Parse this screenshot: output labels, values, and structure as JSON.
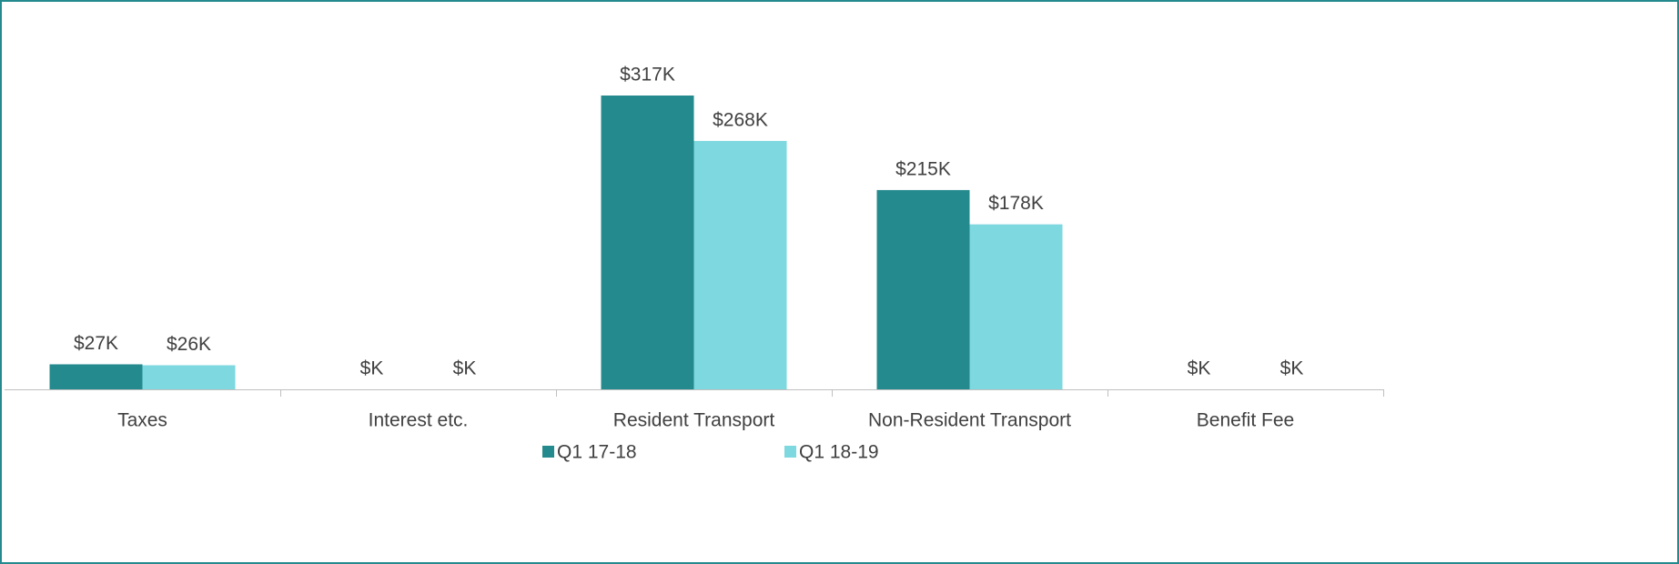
{
  "chart_data": {
    "type": "bar",
    "categories": [
      "Taxes",
      "Interest etc.",
      "Resident Transport",
      "Non-Resident Transport",
      "Benefit Fee"
    ],
    "series": [
      {
        "name": "Q1 17-18",
        "color": "#248a8d",
        "values": [
          27,
          0,
          317,
          215,
          0
        ],
        "value_labels": [
          "$27K",
          "$K",
          "$317K",
          "$215K",
          "$K"
        ]
      },
      {
        "name": "Q1 18-19",
        "color": "#7dd8df",
        "values": [
          26,
          0,
          268,
          178,
          0
        ],
        "value_labels": [
          "$26K",
          "$K",
          "$268K",
          "$178K",
          "$K"
        ]
      }
    ]
  }
}
